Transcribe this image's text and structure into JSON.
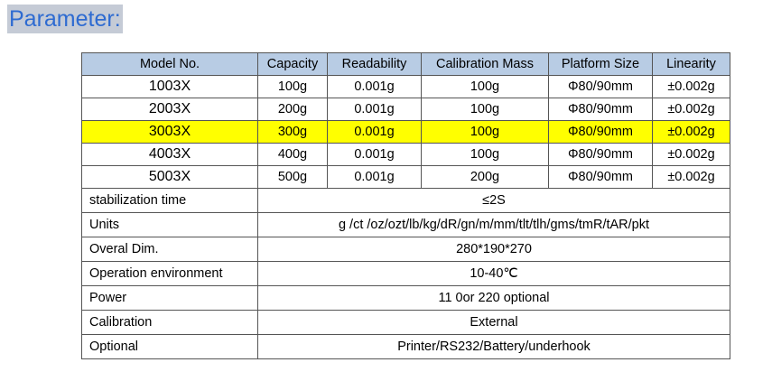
{
  "title": "Parameter:",
  "table": {
    "headers": [
      "Model No.",
      "Capacity",
      "Readability",
      "Calibration Mass",
      "Platform Size",
      "Linearity"
    ],
    "rows": [
      [
        "1003X",
        "100g",
        "0.001g",
        "100g",
        "Φ80/90mm",
        "±0.002g"
      ],
      [
        "2003X",
        "200g",
        "0.001g",
        "100g",
        "Φ80/90mm",
        "±0.002g"
      ],
      [
        "3003X",
        "300g",
        "0.001g",
        "100g",
        "Φ80/90mm",
        "±0.002g"
      ],
      [
        "4003X",
        "400g",
        "0.001g",
        "100g",
        "Φ80/90mm",
        "±0.002g"
      ],
      [
        "5003X",
        "500g",
        "0.001g",
        "200g",
        "Φ80/90mm",
        "±0.002g"
      ]
    ],
    "highlight_row": 2,
    "highlight_color": "#ffff00",
    "header_color": "#b8cce4",
    "specs": [
      {
        "label": "stabilization time",
        "value": "≤2S"
      },
      {
        "label": "Units",
        "value": "g /ct /oz/ozt/lb/kg/dR/gn/m/mm/tlt/tlh/gms/tmR/tAR/pkt"
      },
      {
        "label": "Overal Dim.",
        "value": "280*190*270"
      },
      {
        "label": "Operation environment",
        "value": "10-40℃"
      },
      {
        "label": "Power",
        "value": "11 0or 220 optional"
      },
      {
        "label": "Calibration",
        "value": "External"
      },
      {
        "label": "Optional",
        "value": "Printer/RS232/Battery/underhook"
      }
    ]
  }
}
